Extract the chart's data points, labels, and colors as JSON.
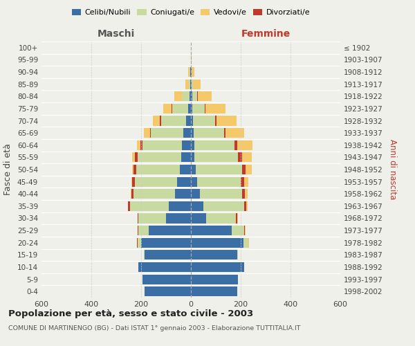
{
  "age_groups": [
    "0-4",
    "5-9",
    "10-14",
    "15-19",
    "20-24",
    "25-29",
    "30-34",
    "35-39",
    "40-44",
    "45-49",
    "50-54",
    "55-59",
    "60-64",
    "65-69",
    "70-74",
    "75-79",
    "80-84",
    "85-89",
    "90-94",
    "95-99",
    "100+"
  ],
  "birth_years": [
    "1998-2002",
    "1993-1997",
    "1988-1992",
    "1983-1987",
    "1978-1982",
    "1973-1977",
    "1968-1972",
    "1963-1967",
    "1958-1962",
    "1953-1957",
    "1948-1952",
    "1943-1947",
    "1938-1942",
    "1933-1937",
    "1928-1932",
    "1923-1927",
    "1918-1922",
    "1913-1917",
    "1908-1912",
    "1903-1907",
    "≤ 1902"
  ],
  "male": {
    "celibi": [
      185,
      195,
      210,
      185,
      200,
      170,
      100,
      90,
      65,
      55,
      45,
      40,
      35,
      30,
      20,
      10,
      5,
      2,
      2,
      0,
      0
    ],
    "coniugati": [
      0,
      0,
      0,
      5,
      15,
      40,
      110,
      155,
      165,
      170,
      175,
      175,
      160,
      130,
      100,
      65,
      30,
      5,
      3,
      0,
      0
    ],
    "vedovi": [
      0,
      0,
      0,
      0,
      0,
      0,
      0,
      1,
      2,
      3,
      5,
      10,
      15,
      25,
      30,
      35,
      30,
      15,
      5,
      1,
      0
    ],
    "divorziati": [
      0,
      0,
      0,
      0,
      1,
      3,
      5,
      8,
      10,
      12,
      10,
      10,
      8,
      5,
      4,
      2,
      1,
      1,
      0,
      0,
      0
    ]
  },
  "female": {
    "nubili": [
      185,
      190,
      215,
      185,
      210,
      165,
      60,
      50,
      35,
      25,
      20,
      15,
      15,
      12,
      8,
      5,
      5,
      2,
      2,
      0,
      0
    ],
    "coniugate": [
      0,
      0,
      0,
      5,
      20,
      50,
      120,
      165,
      170,
      175,
      185,
      175,
      160,
      120,
      90,
      50,
      20,
      5,
      2,
      0,
      0
    ],
    "vedove": [
      0,
      0,
      0,
      0,
      1,
      2,
      3,
      5,
      10,
      15,
      25,
      40,
      60,
      75,
      80,
      80,
      55,
      30,
      10,
      2,
      0
    ],
    "divorziate": [
      0,
      0,
      0,
      0,
      1,
      3,
      5,
      8,
      12,
      15,
      15,
      15,
      12,
      8,
      5,
      3,
      2,
      1,
      0,
      0,
      0
    ]
  },
  "colors": {
    "celibi_nubili": "#3a6ea5",
    "coniugati": "#c8daa0",
    "vedovi": "#f5c96a",
    "divorziati": "#c0392b"
  },
  "xlim": 600,
  "title": "Popolazione per età, sesso e stato civile - 2003",
  "subtitle": "COMUNE DI MARTINENGO (BG) - Dati ISTAT 1° gennaio 2003 - Elaborazione TUTTITALIA.IT",
  "xlabel_left": "Maschi",
  "xlabel_right": "Femmine",
  "ylabel_left": "Fasce di età",
  "ylabel_right": "Anni di nascita",
  "bg_color": "#f0f0eb"
}
